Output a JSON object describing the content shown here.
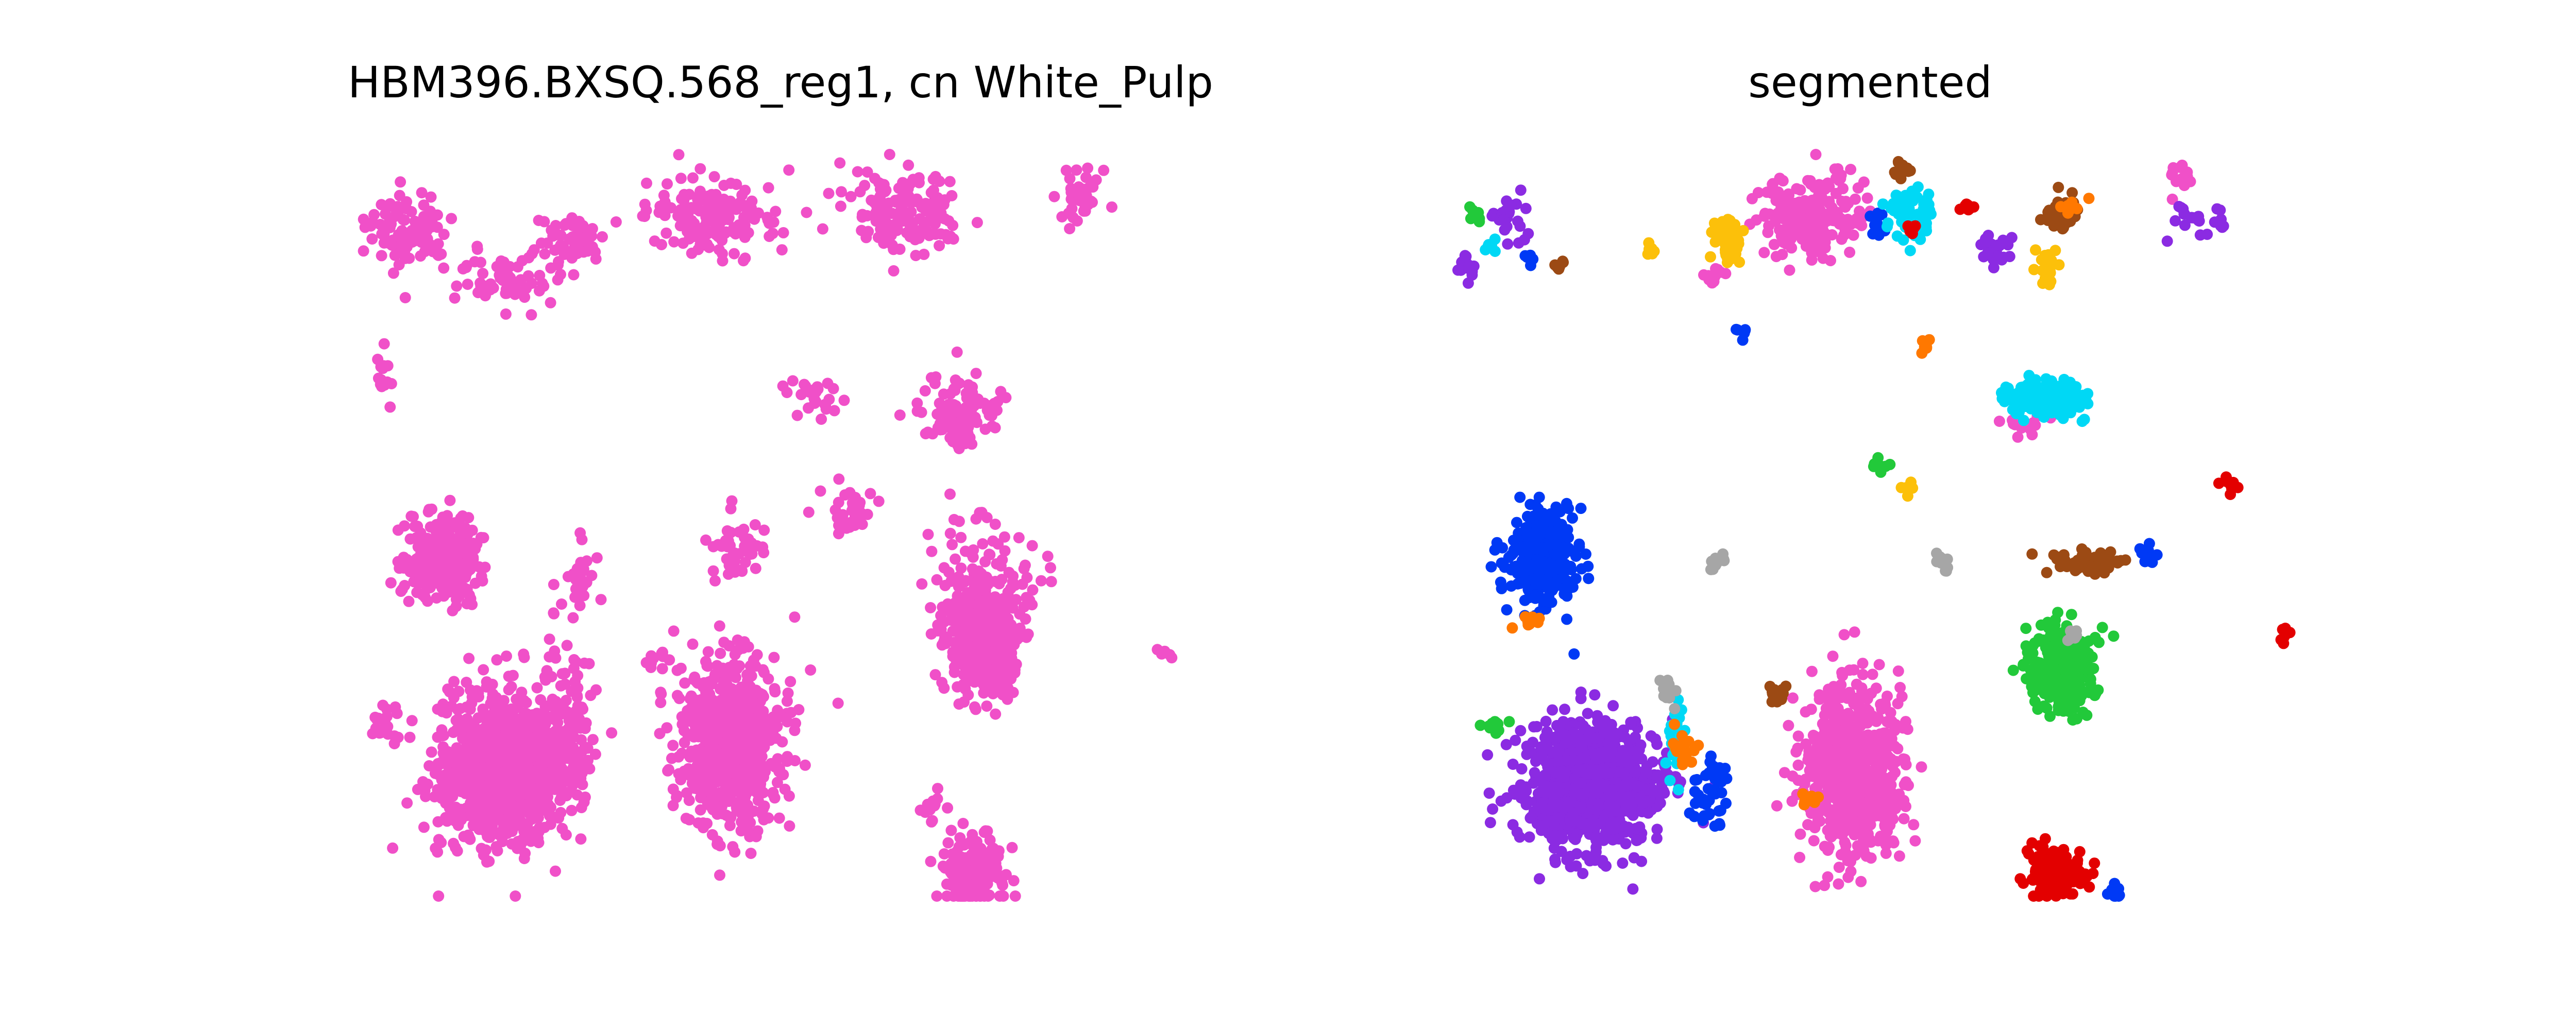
{
  "chart_data": [
    {
      "type": "scatter",
      "title": "HBM396.BXSQ.568_reg1, cn White_Pulp",
      "axes": "off",
      "grid": false,
      "series": [
        {
          "color": "#f050c8",
          "clusters": [
            {
              "x": 0.055,
              "y": 0.1,
              "rx": 0.05,
              "ry": 0.048,
              "n": 90
            },
            {
              "x": 0.25,
              "y": 0.115,
              "rx": 0.04,
              "ry": 0.035,
              "n": 55
            },
            {
              "x": 0.175,
              "y": 0.17,
              "rx": 0.07,
              "ry": 0.04,
              "n": 70
            },
            {
              "x": 0.42,
              "y": 0.085,
              "rx": 0.08,
              "ry": 0.05,
              "n": 150
            },
            {
              "x": 0.65,
              "y": 0.075,
              "rx": 0.07,
              "ry": 0.05,
              "n": 160
            },
            {
              "x": 0.855,
              "y": 0.055,
              "rx": 0.025,
              "ry": 0.04,
              "n": 35
            },
            {
              "x": 0.025,
              "y": 0.3,
              "rx": 0.01,
              "ry": 0.04,
              "n": 15
            },
            {
              "x": 0.715,
              "y": 0.345,
              "rx": 0.05,
              "ry": 0.055,
              "n": 110
            },
            {
              "x": 0.54,
              "y": 0.33,
              "rx": 0.03,
              "ry": 0.03,
              "n": 25
            },
            {
              "x": 0.095,
              "y": 0.545,
              "rx": 0.045,
              "ry": 0.06,
              "n": 260
            },
            {
              "x": 0.26,
              "y": 0.57,
              "rx": 0.02,
              "ry": 0.05,
              "n": 30
            },
            {
              "x": 0.45,
              "y": 0.53,
              "rx": 0.035,
              "ry": 0.04,
              "n": 45
            },
            {
              "x": 0.59,
              "y": 0.48,
              "rx": 0.03,
              "ry": 0.03,
              "n": 35
            },
            {
              "x": 0.74,
              "y": 0.59,
              "rx": 0.06,
              "ry": 0.09,
              "n": 160
            },
            {
              "x": 0.74,
              "y": 0.66,
              "rx": 0.037,
              "ry": 0.065,
              "n": 420
            },
            {
              "x": 0.96,
              "y": 0.67,
              "rx": 0.015,
              "ry": 0.015,
              "n": 6
            },
            {
              "x": 0.17,
              "y": 0.83,
              "rx": 0.078,
              "ry": 0.1,
              "n": 1100
            },
            {
              "x": 0.25,
              "y": 0.76,
              "rx": 0.03,
              "ry": 0.12,
              "n": 90
            },
            {
              "x": 0.44,
              "y": 0.79,
              "rx": 0.06,
              "ry": 0.11,
              "n": 750
            },
            {
              "x": 0.03,
              "y": 0.77,
              "rx": 0.02,
              "ry": 0.025,
              "n": 18
            },
            {
              "x": 0.35,
              "y": 0.68,
              "rx": 0.02,
              "ry": 0.015,
              "n": 10
            },
            {
              "x": 0.73,
              "y": 0.97,
              "rx": 0.04,
              "ry": 0.05,
              "n": 160
            },
            {
              "x": 0.68,
              "y": 0.88,
              "rx": 0.02,
              "ry": 0.02,
              "n": 12
            }
          ]
        }
      ]
    },
    {
      "type": "scatter",
      "title": "segmented",
      "axes": "off",
      "grid": false,
      "series": [
        {
          "color": "#f050c8",
          "clusters": [
            {
              "x": 0.42,
              "y": 0.085,
              "rx": 0.06,
              "ry": 0.06,
              "n": 200
            },
            {
              "x": 0.86,
              "y": 0.03,
              "rx": 0.015,
              "ry": 0.02,
              "n": 15
            },
            {
              "x": 0.47,
              "y": 0.83,
              "rx": 0.06,
              "ry": 0.11,
              "n": 700
            },
            {
              "x": 0.67,
              "y": 0.35,
              "rx": 0.02,
              "ry": 0.03,
              "n": 25
            },
            {
              "x": 0.305,
              "y": 0.165,
              "rx": 0.015,
              "ry": 0.012,
              "n": 10
            }
          ]
        },
        {
          "color": "#8b2be2",
          "clusters": [
            {
              "x": 0.16,
              "y": 0.85,
              "rx": 0.08,
              "ry": 0.085,
              "n": 900
            },
            {
              "x": 0.88,
              "y": 0.085,
              "rx": 0.03,
              "ry": 0.02,
              "n": 25
            },
            {
              "x": 0.06,
              "y": 0.09,
              "rx": 0.02,
              "ry": 0.03,
              "n": 25
            },
            {
              "x": 0.64,
              "y": 0.13,
              "rx": 0.02,
              "ry": 0.02,
              "n": 25
            },
            {
              "x": 0.01,
              "y": 0.15,
              "rx": 0.01,
              "ry": 0.02,
              "n": 15
            }
          ]
        },
        {
          "color": "#0039f5",
          "clusters": [
            {
              "x": 0.1,
              "y": 0.545,
              "rx": 0.04,
              "ry": 0.06,
              "n": 350
            },
            {
              "x": 0.3,
              "y": 0.86,
              "rx": 0.02,
              "ry": 0.05,
              "n": 45
            },
            {
              "x": 0.5,
              "y": 0.09,
              "rx": 0.01,
              "ry": 0.02,
              "n": 10
            },
            {
              "x": 0.78,
              "y": 1.0,
              "rx": 0.01,
              "ry": 0.015,
              "n": 10
            },
            {
              "x": 0.82,
              "y": 0.54,
              "rx": 0.01,
              "ry": 0.015,
              "n": 10
            },
            {
              "x": 0.085,
              "y": 0.14,
              "rx": 0.008,
              "ry": 0.008,
              "n": 6
            },
            {
              "x": 0.34,
              "y": 0.24,
              "rx": 0.008,
              "ry": 0.008,
              "n": 6
            }
          ]
        },
        {
          "color": "#00d8f5",
          "clusters": [
            {
              "x": 0.7,
              "y": 0.33,
              "rx": 0.045,
              "ry": 0.025,
              "n": 160
            },
            {
              "x": 0.54,
              "y": 0.08,
              "rx": 0.025,
              "ry": 0.04,
              "n": 60
            },
            {
              "x": 0.26,
              "y": 0.8,
              "rx": 0.01,
              "ry": 0.06,
              "n": 25
            },
            {
              "x": 0.04,
              "y": 0.12,
              "rx": 0.01,
              "ry": 0.01,
              "n": 6
            }
          ]
        },
        {
          "color": "#22c93a",
          "clusters": [
            {
              "x": 0.72,
              "y": 0.69,
              "rx": 0.04,
              "ry": 0.06,
              "n": 300
            },
            {
              "x": 0.5,
              "y": 0.42,
              "rx": 0.01,
              "ry": 0.015,
              "n": 10
            },
            {
              "x": 0.04,
              "y": 0.77,
              "rx": 0.015,
              "ry": 0.01,
              "n": 12
            },
            {
              "x": 0.02,
              "y": 0.08,
              "rx": 0.008,
              "ry": 0.01,
              "n": 6
            }
          ]
        },
        {
          "color": "#fcc00a",
          "clusters": [
            {
              "x": 0.32,
              "y": 0.11,
              "rx": 0.015,
              "ry": 0.035,
              "n": 55
            },
            {
              "x": 0.7,
              "y": 0.15,
              "rx": 0.015,
              "ry": 0.03,
              "n": 20
            },
            {
              "x": 0.23,
              "y": 0.13,
              "rx": 0.01,
              "ry": 0.01,
              "n": 8
            },
            {
              "x": 0.54,
              "y": 0.45,
              "rx": 0.01,
              "ry": 0.01,
              "n": 6
            }
          ]
        },
        {
          "color": "#9c4a14",
          "clusters": [
            {
              "x": 0.75,
              "y": 0.55,
              "rx": 0.04,
              "ry": 0.015,
              "n": 60
            },
            {
              "x": 0.72,
              "y": 0.08,
              "rx": 0.02,
              "ry": 0.03,
              "n": 40
            },
            {
              "x": 0.38,
              "y": 0.73,
              "rx": 0.015,
              "ry": 0.015,
              "n": 20
            },
            {
              "x": 0.53,
              "y": 0.02,
              "rx": 0.01,
              "ry": 0.015,
              "n": 12
            },
            {
              "x": 0.12,
              "y": 0.15,
              "rx": 0.008,
              "ry": 0.01,
              "n": 6
            }
          ]
        },
        {
          "color": "#ff7800",
          "clusters": [
            {
              "x": 0.56,
              "y": 0.26,
              "rx": 0.008,
              "ry": 0.008,
              "n": 6
            },
            {
              "x": 0.27,
              "y": 0.8,
              "rx": 0.015,
              "ry": 0.03,
              "n": 20
            },
            {
              "x": 0.73,
              "y": 0.07,
              "rx": 0.015,
              "ry": 0.01,
              "n": 12
            },
            {
              "x": 0.42,
              "y": 0.87,
              "rx": 0.01,
              "ry": 0.01,
              "n": 8
            },
            {
              "x": 0.09,
              "y": 0.63,
              "rx": 0.015,
              "ry": 0.008,
              "n": 10
            }
          ]
        },
        {
          "color": "#e30000",
          "clusters": [
            {
              "x": 0.71,
              "y": 0.97,
              "rx": 0.035,
              "ry": 0.035,
              "n": 160
            },
            {
              "x": 0.92,
              "y": 0.45,
              "rx": 0.01,
              "ry": 0.01,
              "n": 8
            },
            {
              "x": 0.98,
              "y": 0.65,
              "rx": 0.01,
              "ry": 0.01,
              "n": 8
            },
            {
              "x": 0.61,
              "y": 0.07,
              "rx": 0.01,
              "ry": 0.005,
              "n": 8
            },
            {
              "x": 0.54,
              "y": 0.1,
              "rx": 0.008,
              "ry": 0.008,
              "n": 6
            }
          ]
        },
        {
          "color": "#a6a6a6",
          "clusters": [
            {
              "x": 0.31,
              "y": 0.55,
              "rx": 0.01,
              "ry": 0.015,
              "n": 12
            },
            {
              "x": 0.25,
              "y": 0.72,
              "rx": 0.01,
              "ry": 0.02,
              "n": 12
            },
            {
              "x": 0.73,
              "y": 0.65,
              "rx": 0.01,
              "ry": 0.01,
              "n": 8
            },
            {
              "x": 0.58,
              "y": 0.55,
              "rx": 0.01,
              "ry": 0.015,
              "n": 10
            }
          ]
        }
      ]
    }
  ]
}
